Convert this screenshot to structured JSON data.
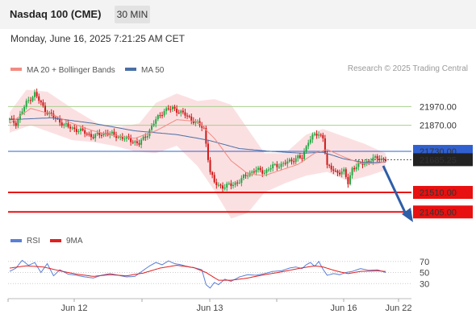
{
  "header": {
    "title": "Nasdaq 100 (CME)",
    "timeframe": "30 MIN"
  },
  "datetime": "Monday, June 16, 2025 7:21:25 AM CET",
  "credit": "Research © 2025 Trading Central",
  "legend": {
    "ma20": {
      "label": "MA 20 + Bollinger Bands",
      "color": "#f28b82"
    },
    "ma50": {
      "label": "MA 50",
      "color": "#4a6fa5"
    },
    "rsi": {
      "label": "RSI",
      "color": "#5b7fd6"
    },
    "rsi_ma": {
      "label": "9MA",
      "color": "#e02020"
    }
  },
  "colors": {
    "up": "#27a845",
    "down": "#d01818",
    "resistance": "#a8d08d",
    "support": "#e81010",
    "current": "#3060d0",
    "arrow": "#2e5ea8",
    "band": "#fadadd"
  },
  "chart_data": [
    {
      "type": "candlestick",
      "ylim": [
        21320,
        22110
      ],
      "x_ticks": [
        "Jun 12",
        "Jun 13",
        "Jun 16",
        "Jun 22"
      ],
      "levels": [
        {
          "value": 21970.0,
          "label": "21970.00",
          "kind": "resistance"
        },
        {
          "value": 21870.0,
          "label": "21870.00",
          "kind": "resistance"
        },
        {
          "value": 21730.0,
          "label": "21730.00",
          "kind": "pivot"
        },
        {
          "value": 21510.0,
          "label": "21510.00",
          "kind": "support"
        },
        {
          "value": 21405.0,
          "label": "21405.00",
          "kind": "support"
        }
      ],
      "last_price": {
        "value": 21685.25,
        "label": "21685.25"
      },
      "anchors": [
        [
          0,
          21900
        ],
        [
          3,
          21880
        ],
        [
          8,
          21990
        ],
        [
          12,
          22040
        ],
        [
          17,
          21950
        ],
        [
          22,
          21905
        ],
        [
          28,
          21860
        ],
        [
          34,
          21840
        ],
        [
          40,
          21810
        ],
        [
          46,
          21830
        ],
        [
          52,
          21810
        ],
        [
          58,
          21790
        ],
        [
          62,
          21770
        ],
        [
          66,
          21825
        ],
        [
          70,
          21900
        ],
        [
          74,
          21950
        ],
        [
          78,
          21960
        ],
        [
          82,
          21940
        ],
        [
          86,
          21910
        ],
        [
          90,
          21880
        ],
        [
          93,
          21850
        ],
        [
          96,
          21620
        ],
        [
          98,
          21560
        ],
        [
          102,
          21540
        ],
        [
          106,
          21550
        ],
        [
          110,
          21570
        ],
        [
          114,
          21610
        ],
        [
          118,
          21630
        ],
        [
          122,
          21620
        ],
        [
          126,
          21650
        ],
        [
          130,
          21660
        ],
        [
          134,
          21675
        ],
        [
          138,
          21700
        ],
        [
          140,
          21690
        ],
        [
          143,
          21790
        ],
        [
          146,
          21820
        ],
        [
          150,
          21810
        ],
        [
          152,
          21650
        ],
        [
          156,
          21620
        ],
        [
          160,
          21620
        ],
        [
          162,
          21560
        ],
        [
          164,
          21640
        ],
        [
          168,
          21660
        ],
        [
          172,
          21680
        ],
        [
          176,
          21695
        ],
        [
          180,
          21685
        ]
      ],
      "ma20": [
        [
          0,
          21880
        ],
        [
          10,
          21960
        ],
        [
          20,
          21930
        ],
        [
          30,
          21880
        ],
        [
          40,
          21840
        ],
        [
          50,
          21815
        ],
        [
          60,
          21800
        ],
        [
          70,
          21840
        ],
        [
          80,
          21900
        ],
        [
          90,
          21890
        ],
        [
          98,
          21800
        ],
        [
          106,
          21680
        ],
        [
          114,
          21610
        ],
        [
          122,
          21600
        ],
        [
          130,
          21630
        ],
        [
          138,
          21660
        ],
        [
          146,
          21720
        ],
        [
          152,
          21740
        ],
        [
          160,
          21700
        ],
        [
          168,
          21665
        ],
        [
          176,
          21665
        ],
        [
          180,
          21675
        ]
      ],
      "ma50": [
        [
          0,
          21900
        ],
        [
          20,
          21910
        ],
        [
          40,
          21880
        ],
        [
          60,
          21840
        ],
        [
          80,
          21820
        ],
        [
          95,
          21790
        ],
        [
          110,
          21745
        ],
        [
          125,
          21730
        ],
        [
          140,
          21720
        ],
        [
          150,
          21725
        ],
        [
          160,
          21690
        ],
        [
          170,
          21670
        ],
        [
          180,
          21672
        ]
      ],
      "bb_upper": [
        [
          0,
          21940
        ],
        [
          8,
          22060
        ],
        [
          18,
          22050
        ],
        [
          30,
          21960
        ],
        [
          42,
          21880
        ],
        [
          52,
          21860
        ],
        [
          62,
          21880
        ],
        [
          70,
          21990
        ],
        [
          80,
          22040
        ],
        [
          90,
          22000
        ],
        [
          98,
          22010
        ],
        [
          106,
          21980
        ],
        [
          114,
          21850
        ],
        [
          122,
          21720
        ],
        [
          132,
          21720
        ],
        [
          142,
          21820
        ],
        [
          150,
          21850
        ],
        [
          160,
          21810
        ],
        [
          170,
          21770
        ],
        [
          180,
          21720
        ]
      ],
      "bb_lower": [
        [
          0,
          21830
        ],
        [
          10,
          21870
        ],
        [
          20,
          21830
        ],
        [
          30,
          21790
        ],
        [
          40,
          21780
        ],
        [
          50,
          21760
        ],
        [
          60,
          21730
        ],
        [
          70,
          21720
        ],
        [
          80,
          21760
        ],
        [
          90,
          21650
        ],
        [
          98,
          21520
        ],
        [
          106,
          21370
        ],
        [
          114,
          21400
        ],
        [
          122,
          21510
        ],
        [
          132,
          21560
        ],
        [
          142,
          21600
        ],
        [
          152,
          21620
        ],
        [
          162,
          21570
        ],
        [
          172,
          21600
        ],
        [
          180,
          21630
        ]
      ]
    },
    {
      "type": "line",
      "ylim": [
        10,
        90
      ],
      "y_ticks": [
        "70",
        "50",
        "30"
      ],
      "rsi": [
        [
          0,
          52
        ],
        [
          3,
          58
        ],
        [
          6,
          72
        ],
        [
          9,
          63
        ],
        [
          12,
          68
        ],
        [
          15,
          50
        ],
        [
          18,
          66
        ],
        [
          21,
          44
        ],
        [
          24,
          55
        ],
        [
          28,
          47
        ],
        [
          32,
          45
        ],
        [
          36,
          42
        ],
        [
          40,
          40
        ],
        [
          44,
          45
        ],
        [
          48,
          48
        ],
        [
          52,
          45
        ],
        [
          56,
          42
        ],
        [
          60,
          43
        ],
        [
          64,
          54
        ],
        [
          67,
          62
        ],
        [
          70,
          68
        ],
        [
          73,
          64
        ],
        [
          76,
          71
        ],
        [
          79,
          66
        ],
        [
          82,
          64
        ],
        [
          86,
          60
        ],
        [
          89,
          58
        ],
        [
          92,
          55
        ],
        [
          94,
          28
        ],
        [
          96,
          22
        ],
        [
          98,
          32
        ],
        [
          100,
          28
        ],
        [
          103,
          38
        ],
        [
          106,
          34
        ],
        [
          110,
          42
        ],
        [
          114,
          46
        ],
        [
          118,
          45
        ],
        [
          122,
          48
        ],
        [
          126,
          52
        ],
        [
          130,
          53
        ],
        [
          134,
          58
        ],
        [
          137,
          60
        ],
        [
          140,
          57
        ],
        [
          142,
          64
        ],
        [
          144,
          68
        ],
        [
          146,
          61
        ],
        [
          148,
          70
        ],
        [
          150,
          56
        ],
        [
          152,
          45
        ],
        [
          155,
          48
        ],
        [
          158,
          46
        ],
        [
          161,
          50
        ],
        [
          164,
          52
        ],
        [
          168,
          57
        ],
        [
          172,
          54
        ],
        [
          176,
          55
        ],
        [
          180,
          50
        ]
      ],
      "rsi_ma": [
        [
          0,
          58
        ],
        [
          8,
          62
        ],
        [
          16,
          60
        ],
        [
          24,
          53
        ],
        [
          32,
          47
        ],
        [
          40,
          43
        ],
        [
          48,
          46
        ],
        [
          56,
          44
        ],
        [
          64,
          49
        ],
        [
          72,
          58
        ],
        [
          80,
          63
        ],
        [
          88,
          59
        ],
        [
          94,
          50
        ],
        [
          100,
          36
        ],
        [
          106,
          36
        ],
        [
          114,
          40
        ],
        [
          122,
          46
        ],
        [
          130,
          51
        ],
        [
          138,
          57
        ],
        [
          146,
          62
        ],
        [
          150,
          60
        ],
        [
          156,
          53
        ],
        [
          162,
          48
        ],
        [
          168,
          52
        ],
        [
          176,
          53
        ],
        [
          180,
          52
        ]
      ]
    }
  ]
}
